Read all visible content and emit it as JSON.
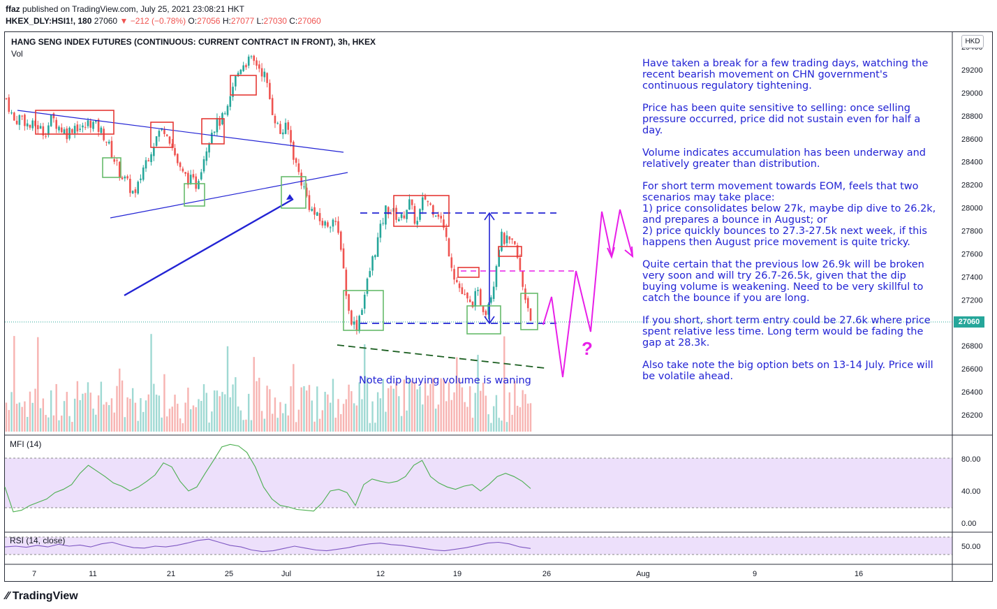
{
  "header": {
    "author": "ffaz",
    "published": " published on TradingView.com, July 25, 2021 23:08:21 HKT",
    "symbol": "HKEX_DLY:HSI1!, 180",
    "last": "27060",
    "change": "−212 (−0.78%)",
    "o_label": "O:",
    "o_value": "27056",
    "h_label": "H:",
    "h_value": "27077",
    "l_label": "L:",
    "l_value": "27030",
    "c_label": "C:",
    "c_value": "27060"
  },
  "chart_title": "HANG SENG INDEX FUTURES (CONTINUOUS: CURRENT CONTRACT IN FRONT), 3h, HKEX",
  "volume_label": "Vol",
  "currency": "HKD",
  "last_price_tag": "27060",
  "mfi_label": "MFI (14)",
  "rsi_label": "RSI (14, close)",
  "notes": [
    "Have taken a break for a few trading days, watching the recent bearish movement on CHN government's continuous regulatory tightening.",
    "Price has been quite sensitive to selling: once selling pressure occurred, price did not sustain even for half a day.",
    "Volume indicates accumulation has been underway and relatively greater than distribution.",
    "For short term movement towards EOM, feels that two scenarios may take place:\n1) price consolidates below 27k, maybe dip dive to 26.2k, and prepares a bounce in August; or\n2) price quickly bounces to 27.3-27.5k next week, if this happens then August price movement is quite tricky.",
    "Quite certain that the previous low 26.9k will be broken very soon and will try 26.7-26.5k, given that the dip buying volume is weakening. Need to be very skillful to catch the bounce if you are long.",
    "If you short, short term entry could be 27.6k where price spent relative less time. Long term would be fading the gap at 28.3k.",
    "Also take note the big option bets on 13-14 July. Price will be volatile ahead."
  ],
  "volume_note": "Note dip buying volume is waning",
  "question_mark": "?",
  "brand": "TradingView",
  "chart_data": [
    {
      "type": "candlestick",
      "title": "HANG SENG INDEX FUTURES (CONTINUOUS: CURRENT CONTRACT IN FRONT), 3h, HKEX",
      "price_axis_ticks": [
        29400,
        29200,
        29000,
        28800,
        28600,
        28400,
        28200,
        28000,
        27800,
        27600,
        27400,
        27200,
        27000,
        26800,
        26600,
        26400,
        26200
      ],
      "ylim": [
        26100,
        29500
      ],
      "last_price": 27060,
      "x_ticks": [
        "7",
        "11",
        "21",
        "25",
        "Jul",
        "12",
        "19",
        "26",
        "Aug",
        "9",
        "16"
      ],
      "close_path": [
        28950,
        28750,
        28800,
        28700,
        28720,
        28650,
        28780,
        28700,
        28650,
        28720,
        28680,
        28750,
        28700,
        28620,
        28450,
        28300,
        28200,
        28100,
        28350,
        28500,
        28650,
        28700,
        28500,
        28300,
        28250,
        28200,
        28450,
        28680,
        28750,
        28800,
        29100,
        29250,
        29280,
        29250,
        29150,
        28850,
        28650,
        28700,
        28400,
        28200,
        28000,
        27900,
        27850,
        27900,
        27700,
        27100,
        26950,
        27200,
        27500,
        27750,
        28000,
        27950,
        27900,
        28050,
        27850,
        28100,
        28000,
        27950,
        27700,
        27400,
        27250,
        27150,
        27250,
        27100,
        27300,
        27750,
        27700,
        27650,
        27300,
        27060
      ],
      "volume": "bars in lower section of the price pane, red/green by candle direction",
      "annotations": {
        "resistance_line": "descending blue line from 7 Jun to 5 Jul",
        "support_line": "ascending blue line from 18 Jun to 8 Jul",
        "dashed_levels": [
          28050,
          27060,
          27520
        ],
        "projection": "magenta zigzag scenarios"
      }
    },
    {
      "type": "line",
      "name": "MFI (14)",
      "ticks": [
        80.0,
        40.0,
        0.0
      ],
      "ylim": [
        -5,
        100
      ],
      "bands": [
        80,
        20
      ],
      "values": [
        45,
        14,
        16,
        22,
        26,
        30,
        38,
        42,
        48,
        62,
        72,
        65,
        58,
        50,
        46,
        40,
        45,
        52,
        60,
        75,
        70,
        52,
        40,
        45,
        62,
        78,
        95,
        98,
        96,
        88,
        70,
        45,
        30,
        22,
        20,
        17,
        16,
        15,
        25,
        40,
        42,
        38,
        22,
        48,
        55,
        52,
        50,
        52,
        58,
        72,
        78,
        58,
        50,
        45,
        42,
        46,
        48,
        40,
        48,
        58,
        62,
        58,
        52,
        43
      ]
    },
    {
      "type": "line",
      "name": "RSI (14, close)",
      "ticks": [
        50.0
      ],
      "ylim": [
        25,
        75
      ],
      "bands": [
        70,
        30
      ],
      "values": [
        48,
        50,
        47,
        52,
        48,
        55,
        50,
        53,
        48,
        56,
        60,
        52,
        46,
        45,
        50,
        48,
        52,
        58,
        65,
        68,
        60,
        52,
        48,
        40,
        36,
        38,
        44,
        50,
        45,
        40,
        38,
        42,
        46,
        52,
        56,
        58,
        54,
        52,
        48,
        44,
        40,
        38,
        42,
        46,
        52,
        58,
        60,
        56,
        48,
        44
      ]
    }
  ]
}
